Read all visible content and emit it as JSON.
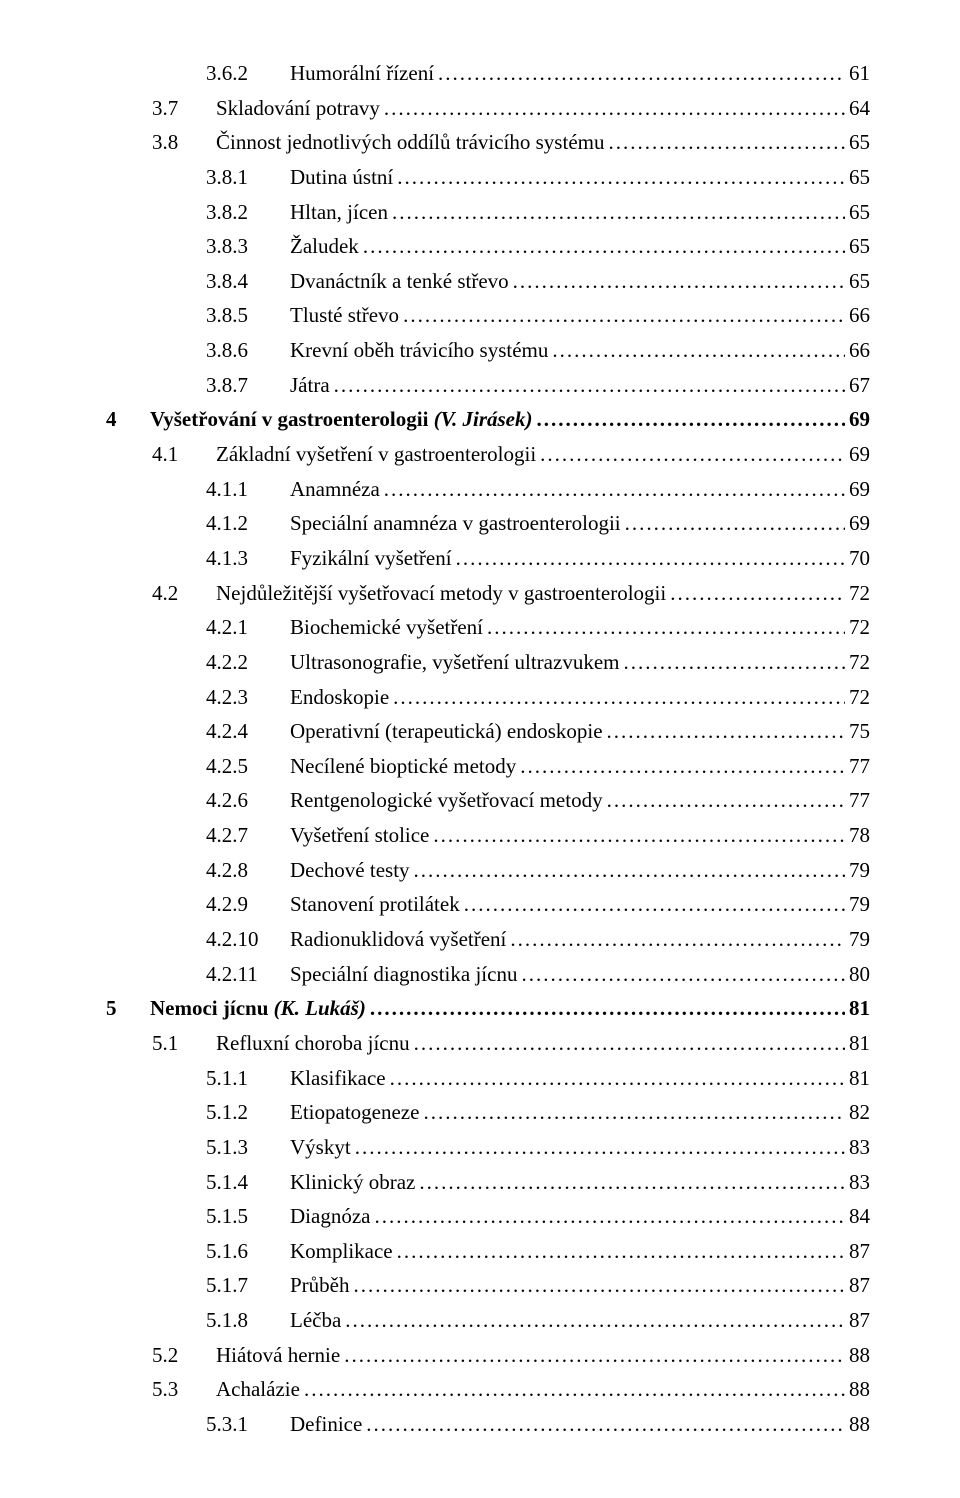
{
  "toc": [
    {
      "level": 3,
      "num": "3.6.2",
      "label": "Humorální řízení",
      "page": "61"
    },
    {
      "level": 2,
      "num": "3.7",
      "label": "Skladování potravy",
      "page": "64"
    },
    {
      "level": 2,
      "num": "3.8",
      "label": "Činnost jednotlivých oddílů trávicího systému",
      "page": "65"
    },
    {
      "level": 3,
      "num": "3.8.1",
      "label": "Dutina ústní",
      "page": "65"
    },
    {
      "level": 3,
      "num": "3.8.2",
      "label": "Hltan, jícen",
      "page": "65"
    },
    {
      "level": 3,
      "num": "3.8.3",
      "label": "Žaludek",
      "page": "65"
    },
    {
      "level": 3,
      "num": "3.8.4",
      "label": "Dvanáctník a tenké střevo",
      "page": "65"
    },
    {
      "level": 3,
      "num": "3.8.5",
      "label": "Tlusté střevo",
      "page": "66"
    },
    {
      "level": 3,
      "num": "3.8.6",
      "label": "Krevní oběh trávicího systému",
      "page": "66"
    },
    {
      "level": 3,
      "num": "3.8.7",
      "label": "Játra",
      "page": "67"
    },
    {
      "level": 1,
      "num": "4",
      "label_pre": "Vyšetřování v gastroenterologii ",
      "label_ital": "(V. Jirásek)",
      "page": "69",
      "bold": true
    },
    {
      "level": 2,
      "num": "4.1",
      "label": "Základní vyšetření v gastroenterologii",
      "page": "69"
    },
    {
      "level": 3,
      "num": "4.1.1",
      "label": "Anamnéza",
      "page": "69"
    },
    {
      "level": 3,
      "num": "4.1.2",
      "label": "Speciální anamnéza v gastroenterologii",
      "page": "69"
    },
    {
      "level": 3,
      "num": "4.1.3",
      "label": "Fyzikální vyšetření",
      "page": "70"
    },
    {
      "level": 2,
      "num": "4.2",
      "label": "Nejdůležitější vyšetřovací metody v gastroenterologii",
      "page": "72"
    },
    {
      "level": 3,
      "num": "4.2.1",
      "label": "Biochemické vyšetření",
      "page": "72"
    },
    {
      "level": 3,
      "num": "4.2.2",
      "label": "Ultrasonografie, vyšetření ultrazvukem",
      "page": "72"
    },
    {
      "level": 3,
      "num": "4.2.3",
      "label": "Endoskopie",
      "page": "72"
    },
    {
      "level": 3,
      "num": "4.2.4",
      "label": "Operativní (terapeutická) endoskopie",
      "page": "75"
    },
    {
      "level": 3,
      "num": "4.2.5",
      "label": "Necílené bioptické metody",
      "page": "77"
    },
    {
      "level": 3,
      "num": "4.2.6",
      "label": "Rentgenologické vyšetřovací metody",
      "page": "77"
    },
    {
      "level": 3,
      "num": "4.2.7",
      "label": "Vyšetření stolice",
      "page": "78"
    },
    {
      "level": 3,
      "num": "4.2.8",
      "label": "Dechové testy",
      "page": "79"
    },
    {
      "level": 3,
      "num": "4.2.9",
      "label": "Stanovení protilátek",
      "page": "79"
    },
    {
      "level": 3,
      "num": "4.2.10",
      "label": "Radionuklidová vyšetření",
      "page": "79"
    },
    {
      "level": 3,
      "num": "4.2.11",
      "label": "Speciální diagnostika jícnu",
      "page": "80"
    },
    {
      "level": 1,
      "num": "5",
      "label_pre": "Nemoci jícnu ",
      "label_ital": "(K. Lukáš)",
      "page": "81",
      "bold": true
    },
    {
      "level": 2,
      "num": "5.1",
      "label": "Refluxní choroba jícnu",
      "page": "81"
    },
    {
      "level": 3,
      "num": "5.1.1",
      "label": "Klasifikace",
      "page": "81"
    },
    {
      "level": 3,
      "num": "5.1.2",
      "label": "Etiopatogeneze",
      "page": "82"
    },
    {
      "level": 3,
      "num": "5.1.3",
      "label": "Výskyt",
      "page": "83"
    },
    {
      "level": 3,
      "num": "5.1.4",
      "label": "Klinický obraz",
      "page": "83"
    },
    {
      "level": 3,
      "num": "5.1.5",
      "label": "Diagnóza",
      "page": "84"
    },
    {
      "level": 3,
      "num": "5.1.6",
      "label": "Komplikace",
      "page": "87"
    },
    {
      "level": 3,
      "num": "5.1.7",
      "label": "Průběh",
      "page": "87"
    },
    {
      "level": 3,
      "num": "5.1.8",
      "label": "Léčba",
      "page": "87"
    },
    {
      "level": 2,
      "num": "5.2",
      "label": "Hiátová hernie",
      "page": "88"
    },
    {
      "level": 2,
      "num": "5.3",
      "label": "Achalázie",
      "page": "88"
    },
    {
      "level": 3,
      "num": "5.3.1",
      "label": "Definice",
      "page": "88"
    }
  ]
}
